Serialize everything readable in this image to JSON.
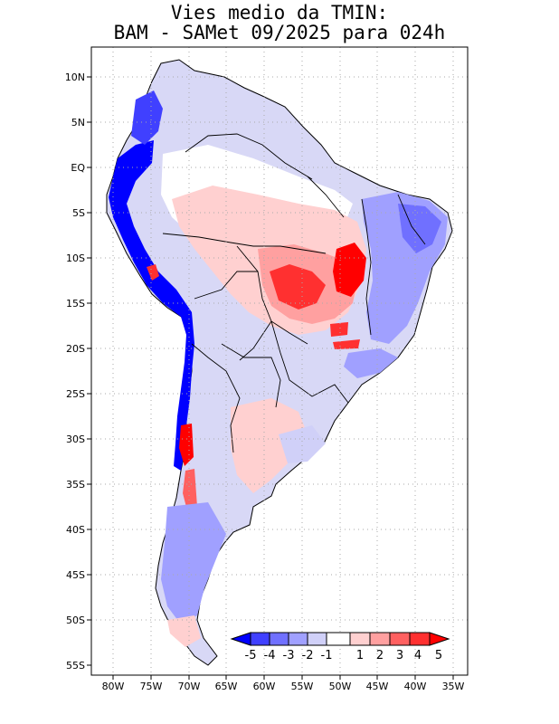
{
  "title": {
    "line1": "Vies medio da TMIN:",
    "line2": "BAM - SAMet 09/2025  para 024h"
  },
  "map": {
    "region": "South America",
    "lon_range": [
      -83,
      -34
    ],
    "lat_range": [
      -56,
      13
    ],
    "grid": true
  },
  "axes": {
    "lat_labels": [
      {
        "lat": 10,
        "label": "10N"
      },
      {
        "lat": 5,
        "label": "5N"
      },
      {
        "lat": 0,
        "label": "EQ"
      },
      {
        "lat": -5,
        "label": "5S"
      },
      {
        "lat": -10,
        "label": "10S"
      },
      {
        "lat": -15,
        "label": "15S"
      },
      {
        "lat": -20,
        "label": "20S"
      },
      {
        "lat": -25,
        "label": "25S"
      },
      {
        "lat": -30,
        "label": "30S"
      },
      {
        "lat": -35,
        "label": "35S"
      },
      {
        "lat": -40,
        "label": "40S"
      },
      {
        "lat": -45,
        "label": "45S"
      },
      {
        "lat": -50,
        "label": "50S"
      },
      {
        "lat": -55,
        "label": "55S"
      }
    ],
    "lon_labels": [
      {
        "lon": -80,
        "label": "80W"
      },
      {
        "lon": -75,
        "label": "75W"
      },
      {
        "lon": -70,
        "label": "70W"
      },
      {
        "lon": -65,
        "label": "65W"
      },
      {
        "lon": -60,
        "label": "60W"
      },
      {
        "lon": -55,
        "label": "55W"
      },
      {
        "lon": -50,
        "label": "50W"
      },
      {
        "lon": -45,
        "label": "45W"
      },
      {
        "lon": -40,
        "label": "40W"
      },
      {
        "lon": -35,
        "label": "35W"
      }
    ]
  },
  "colorbar": {
    "labels": [
      "-5",
      "-4",
      "-3",
      "-2",
      "-1",
      "1",
      "2",
      "3",
      "4",
      "5"
    ],
    "colors": [
      "#0000ff",
      "#4040ff",
      "#7070ff",
      "#a0a0ff",
      "#d0d0f8",
      "#ffffff",
      "#ffd0d0",
      "#ffa0a0",
      "#ff6060",
      "#ff3030",
      "#ff0000"
    ]
  },
  "field_regions": [
    {
      "label": "andes-west-slope",
      "value": -5
    },
    {
      "label": "amazon-central",
      "value": 1
    },
    {
      "label": "brazil-central-west",
      "value": 3
    },
    {
      "label": "tocantins-bahia",
      "value": 5
    },
    {
      "label": "northeast-brazil",
      "value": -2
    },
    {
      "label": "patagonia",
      "value": -2
    },
    {
      "label": "argentina-pampas",
      "value": 1
    }
  ]
}
